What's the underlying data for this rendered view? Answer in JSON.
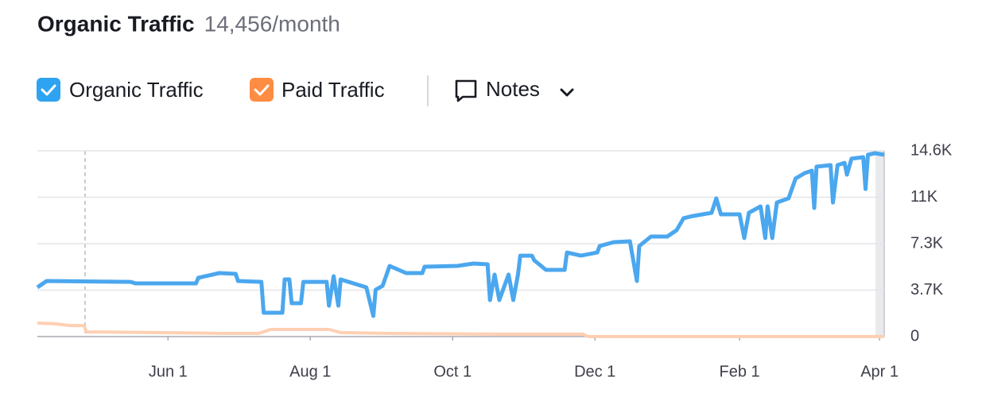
{
  "chart_data": {
    "type": "line",
    "title": "Organic Traffic",
    "subtitle": "14,456/month",
    "notes": "Notes",
    "xlim": [
      0,
      363
    ],
    "xticks": [
      {
        "value": 56,
        "label": "Jun 1"
      },
      {
        "value": 117,
        "label": "Aug 1"
      },
      {
        "value": 178,
        "label": "Oct 1"
      },
      {
        "value": 239,
        "label": "Dec 1"
      },
      {
        "value": 301,
        "label": "Feb 1"
      },
      {
        "value": 361,
        "label": "Apr 1"
      }
    ],
    "ylim": [
      0,
      14600
    ],
    "yticks": [
      0,
      {
        "value": 3650,
        "label": "3.7K"
      },
      {
        "value": 7300,
        "label": "7.3K"
      },
      {
        "value": 10950,
        "label": "11K"
      },
      {
        "value": 14600,
        "label": "14.6K"
      }
    ],
    "grid": true,
    "series": [
      {
        "name": "Organic Traffic",
        "color": "#4ba7ee",
        "x": [
          0,
          4,
          40,
          42,
          68,
          69,
          78,
          85,
          86,
          96,
          97,
          105,
          106,
          108,
          109,
          113,
          114,
          124,
          125,
          127,
          129,
          130,
          141,
          144,
          145,
          148,
          151,
          158,
          165,
          166,
          180,
          187,
          193,
          194,
          196,
          198,
          202,
          204,
          206,
          207,
          212,
          213,
          218,
          226,
          227,
          233,
          240,
          241,
          247,
          254,
          257,
          258,
          263,
          270,
          274,
          277,
          281,
          289,
          291,
          293,
          301,
          303,
          305,
          310,
          312,
          313,
          315,
          317,
          322,
          325,
          329,
          332,
          333,
          334,
          340,
          341,
          343,
          346,
          347,
          349,
          354,
          355,
          356,
          359,
          363
        ],
        "values": [
          3870,
          4370,
          4300,
          4180,
          4180,
          4620,
          4990,
          4930,
          4370,
          4300,
          1870,
          1870,
          4490,
          4490,
          2620,
          2620,
          4300,
          4300,
          2430,
          4740,
          2430,
          4490,
          3870,
          1620,
          3680,
          3990,
          5550,
          4990,
          4990,
          5490,
          5550,
          5740,
          5680,
          2870,
          4870,
          2870,
          4870,
          2870,
          4870,
          6360,
          6360,
          5990,
          5240,
          5240,
          6610,
          6360,
          6610,
          7110,
          7420,
          7490,
          4370,
          7110,
          7860,
          7860,
          8360,
          9300,
          9480,
          9730,
          10860,
          9610,
          9610,
          7740,
          9730,
          10230,
          7740,
          10230,
          7740,
          10540,
          10860,
          12420,
          12850,
          13040,
          10110,
          13350,
          13480,
          10540,
          13480,
          13660,
          12730,
          13980,
          14100,
          11600,
          14290,
          14410,
          14290
        ]
      },
      {
        "name": "Paid Traffic",
        "color": "#ffcfb3",
        "x": [
          0,
          8,
          14,
          20,
          21,
          60,
          80,
          95,
          100,
          125,
          130,
          150,
          200,
          234,
          236,
          363
        ],
        "values": [
          1060,
          1000,
          870,
          870,
          370,
          300,
          250,
          250,
          560,
          560,
          310,
          250,
          190,
          190,
          0,
          0
        ]
      }
    ]
  }
}
